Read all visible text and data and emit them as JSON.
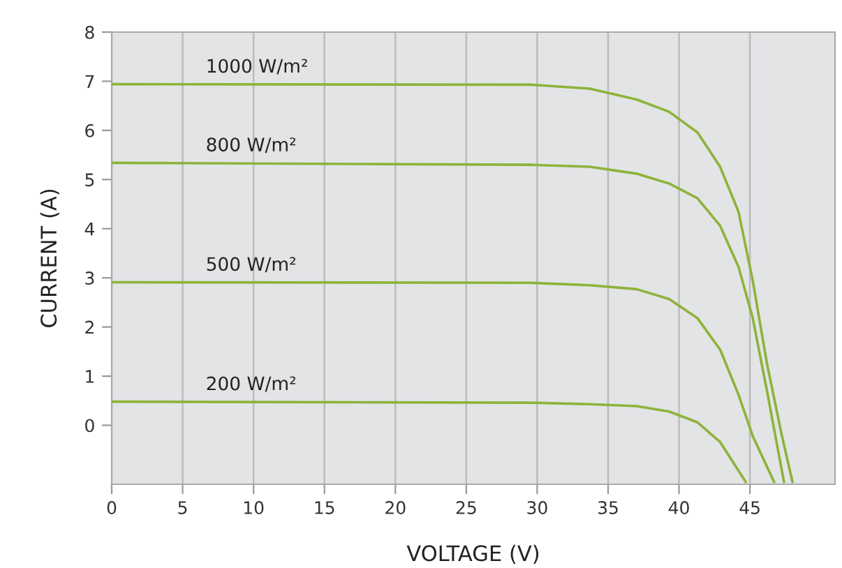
{
  "chart_data": {
    "type": "line",
    "xlabel": "VOLTAGE (V)",
    "ylabel": "CURRENT (A)",
    "series": [
      {
        "name": "1000 W/m²",
        "color": "#8db33a",
        "x": [
          0,
          29.5,
          33.7,
          37.0,
          39.3,
          41.3,
          42.9,
          44.2,
          45.2,
          46.2,
          47.2,
          48.0
        ],
        "values": [
          6.94,
          6.93,
          6.85,
          6.63,
          6.38,
          5.96,
          5.26,
          4.34,
          2.94,
          1.26,
          -0.14,
          -1.15
        ]
      },
      {
        "name": "800 W/m²",
        "color": "#8db33a",
        "x": [
          0,
          29.5,
          33.7,
          37.0,
          39.3,
          41.3,
          42.9,
          44.2,
          45.2,
          46.2,
          47.4
        ],
        "values": [
          5.34,
          5.3,
          5.26,
          5.12,
          4.92,
          4.62,
          4.06,
          3.22,
          2.18,
          0.7,
          -1.15
        ]
      },
      {
        "name": "500 W/m²",
        "color": "#8db33a",
        "x": [
          0,
          29.5,
          33.7,
          37.0,
          39.3,
          41.3,
          42.9,
          44.2,
          45.2,
          46.7
        ],
        "values": [
          2.91,
          2.9,
          2.85,
          2.77,
          2.57,
          2.18,
          1.54,
          0.62,
          -0.22,
          -1.15
        ]
      },
      {
        "name": "200 W/m²",
        "color": "#8db33a",
        "x": [
          0,
          29.5,
          33.7,
          37.0,
          39.3,
          41.3,
          42.9,
          44.7
        ],
        "values": [
          0.48,
          0.46,
          0.43,
          0.39,
          0.28,
          0.06,
          -0.34,
          -1.15
        ]
      }
    ],
    "xlim": [
      0,
      51
    ],
    "xticks": [
      0,
      5,
      10,
      15,
      20,
      25,
      30,
      35,
      40,
      45
    ],
    "ylim": [
      -1.2,
      8
    ],
    "yticks": [
      0,
      1,
      2,
      3,
      4,
      5,
      6,
      7,
      8
    ],
    "grid": "x",
    "marker": "none",
    "line_style": "solid",
    "legend": false
  }
}
